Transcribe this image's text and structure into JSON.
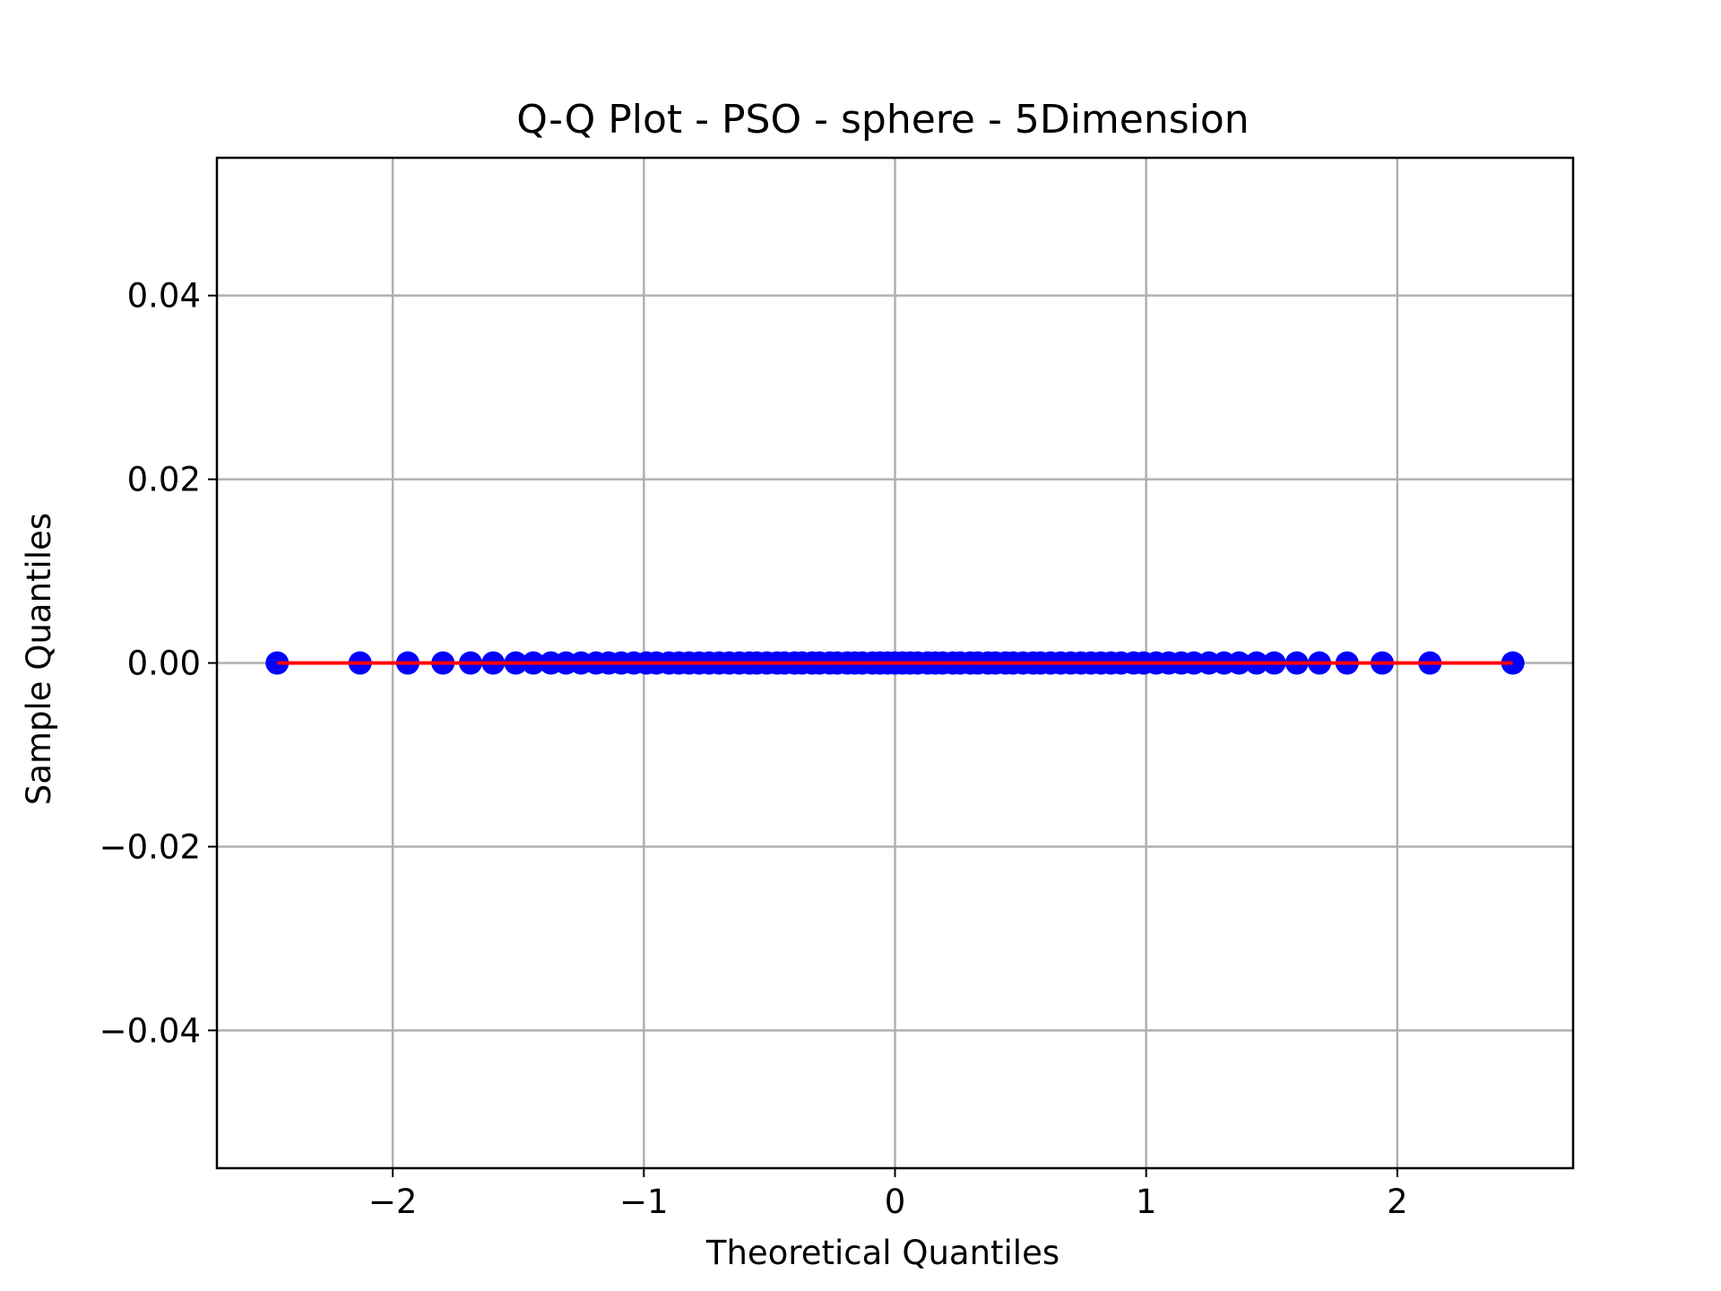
{
  "chart_data": {
    "type": "scatter",
    "title": "Q-Q Plot - PSO - sphere - 5Dimension",
    "xlabel": "Theoretical Quantiles",
    "ylabel": "Sample Quantiles",
    "xlim": [
      -2.7,
      2.7
    ],
    "ylim": [
      -0.055,
      0.055
    ],
    "x_ticks": [
      -2,
      -1,
      0,
      1,
      2
    ],
    "x_tick_labels": [
      "−2",
      "−1",
      "0",
      "1",
      "2"
    ],
    "y_ticks": [
      -0.04,
      -0.02,
      0.0,
      0.02,
      0.04
    ],
    "y_tick_labels": [
      "−0.04",
      "−0.02",
      "0.00",
      "0.02",
      "0.04"
    ],
    "grid": true,
    "series": [
      {
        "kind": "points",
        "color": "#0000ff",
        "x": [
          -2.46,
          -2.13,
          -1.94,
          -1.8,
          -1.69,
          -1.6,
          -1.51,
          -1.44,
          -1.37,
          -1.31,
          -1.25,
          -1.19,
          -1.14,
          -1.09,
          -1.04,
          -0.99,
          -0.95,
          -0.9,
          -0.86,
          -0.82,
          -0.78,
          -0.74,
          -0.7,
          -0.66,
          -0.62,
          -0.58,
          -0.55,
          -0.51,
          -0.47,
          -0.44,
          -0.4,
          -0.37,
          -0.33,
          -0.3,
          -0.26,
          -0.23,
          -0.19,
          -0.16,
          -0.13,
          -0.09,
          -0.06,
          -0.03,
          0.0,
          0.03,
          0.06,
          0.09,
          0.13,
          0.16,
          0.19,
          0.23,
          0.26,
          0.3,
          0.33,
          0.37,
          0.4,
          0.44,
          0.47,
          0.51,
          0.55,
          0.58,
          0.62,
          0.66,
          0.7,
          0.74,
          0.78,
          0.82,
          0.86,
          0.9,
          0.95,
          0.99,
          1.04,
          1.09,
          1.14,
          1.19,
          1.25,
          1.31,
          1.37,
          1.44,
          1.51,
          1.6,
          1.69,
          1.8,
          1.94,
          2.13,
          2.46
        ],
        "y_value": 0.0
      },
      {
        "kind": "line",
        "color": "#ff0000",
        "x": [
          -2.46,
          2.46
        ],
        "y": [
          0.0,
          0.0
        ]
      }
    ]
  }
}
